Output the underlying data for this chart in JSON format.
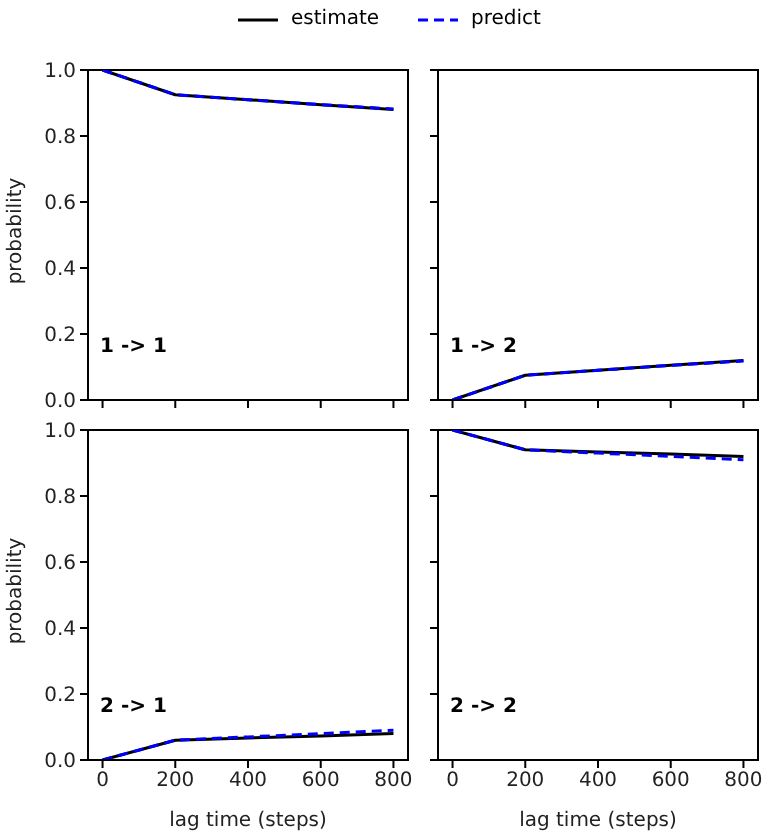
{
  "chart_data": [
    {
      "type": "line",
      "x": [
        0,
        200,
        400,
        600,
        800
      ],
      "ylabel": "probability",
      "annotations": [
        "1 -> 1"
      ],
      "legend": "top",
      "tick_labels": "y",
      "xlim": [
        -40,
        840
      ],
      "xticks": [
        0,
        200,
        400,
        600,
        800
      ],
      "ylim": [
        0,
        1
      ],
      "yticks": [
        {
          "value": 0,
          "label": "0.0"
        },
        {
          "value": 0.2,
          "label": "0.2"
        },
        {
          "value": 0.4,
          "label": "0.4"
        },
        {
          "value": 0.6,
          "label": "0.6"
        },
        {
          "value": 0.8,
          "label": "0.8"
        },
        {
          "value": 1,
          "label": "1.0"
        }
      ],
      "series": [
        {
          "name": "estimate",
          "color": "#000000",
          "line_style": "solid",
          "values": [
            1.0,
            0.925,
            0.91,
            0.895,
            0.88
          ]
        },
        {
          "name": "predict",
          "color": "#0000ff",
          "line_style": "dashed",
          "values": [
            1.0,
            0.925,
            0.91,
            0.895,
            0.882
          ]
        }
      ]
    },
    {
      "type": "line",
      "x": [
        0,
        200,
        400,
        600,
        800
      ],
      "annotations": [
        "1 -> 2"
      ],
      "tick_labels": false,
      "xlim": [
        -40,
        840
      ],
      "xticks": [
        0,
        200,
        400,
        600,
        800
      ],
      "ylim": [
        0,
        1
      ],
      "yticks": [
        0,
        0.2,
        0.4,
        0.6,
        0.8,
        1
      ],
      "series": [
        {
          "color": "#000000",
          "line_style": "solid",
          "values": [
            0,
            0.075,
            0.09,
            0.105,
            0.12
          ]
        },
        {
          "color": "#0000ff",
          "line_style": "dashed",
          "values": [
            0,
            0.075,
            0.09,
            0.105,
            0.118
          ]
        }
      ]
    },
    {
      "type": "line",
      "x": [
        0,
        200,
        400,
        600,
        800
      ],
      "xlabel": "lag time (steps)",
      "ylabel": "probability",
      "annotations": [
        "2 -> 1"
      ],
      "xlim": [
        -40,
        840
      ],
      "xticks": [
        0,
        200,
        400,
        600,
        800
      ],
      "ylim": [
        0,
        1
      ],
      "yticks": [
        {
          "value": 0,
          "label": "0.0"
        },
        {
          "value": 0.2,
          "label": "0.2"
        },
        {
          "value": 0.4,
          "label": "0.4"
        },
        {
          "value": 0.6,
          "label": "0.6"
        },
        {
          "value": 0.8,
          "label": "0.8"
        },
        {
          "value": 1,
          "label": "1.0"
        }
      ],
      "series": [
        {
          "color": "#000000",
          "line_style": "solid",
          "values": [
            0,
            0.06,
            0.067,
            0.073,
            0.08
          ]
        },
        {
          "color": "#0000ff",
          "line_style": "dashed",
          "values": [
            0,
            0.06,
            0.07,
            0.08,
            0.09
          ]
        }
      ]
    },
    {
      "type": "line",
      "x": [
        0,
        200,
        400,
        600,
        800
      ],
      "xlabel": "lag time (steps)",
      "annotations": [
        "2 -> 2"
      ],
      "tick_labels": "x",
      "xlim": [
        -40,
        840
      ],
      "xticks": [
        0,
        200,
        400,
        600,
        800
      ],
      "ylim": [
        0,
        1
      ],
      "yticks": [
        0,
        0.2,
        0.4,
        0.6,
        0.8,
        1
      ],
      "series": [
        {
          "color": "#000000",
          "line_style": "solid",
          "values": [
            1.0,
            0.94,
            0.933,
            0.927,
            0.92
          ]
        },
        {
          "color": "#0000ff",
          "line_style": "dashed",
          "values": [
            1.0,
            0.94,
            0.93,
            0.92,
            0.91
          ]
        }
      ]
    }
  ]
}
